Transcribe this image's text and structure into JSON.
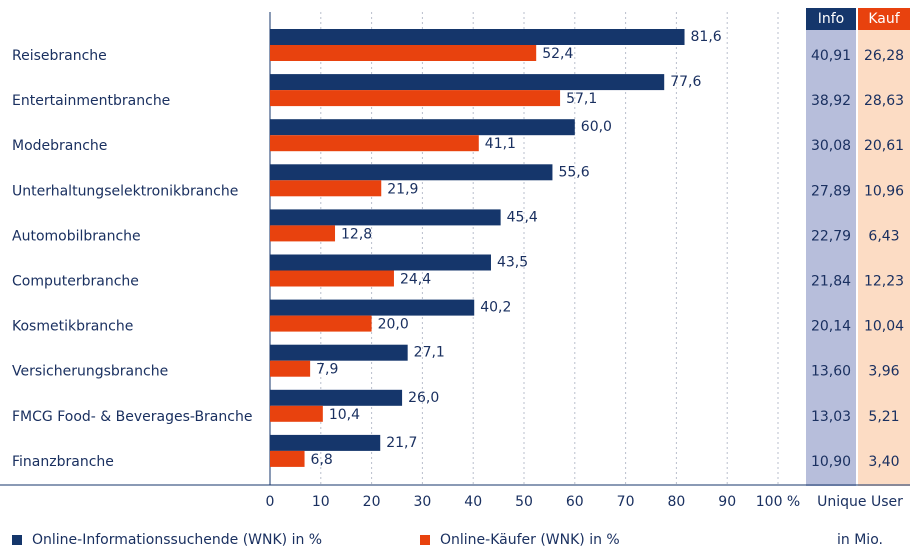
{
  "chart_data": {
    "type": "bar",
    "orientation": "horizontal",
    "categories": [
      "Reisebranche",
      "Entertainmentbranche",
      "Modebranche",
      "Unterhaltungselektronikbranche",
      "Automobilbranche",
      "Computerbranche",
      "Kosmetikbranche",
      "Versicherungsbranche",
      "FMCG Food- & Beverages-Branche",
      "Finanzbranche"
    ],
    "series": [
      {
        "name": "Online-Informationssuchende (WNK) in %",
        "color": "#15366b",
        "values": [
          81.6,
          77.6,
          60.0,
          55.6,
          45.4,
          43.5,
          40.2,
          27.1,
          26.0,
          21.7
        ],
        "value_labels": [
          "81,6",
          "77,6",
          "60,0",
          "55,6",
          "45,4",
          "43,5",
          "40,2",
          "27,1",
          "26,0",
          "21,7"
        ]
      },
      {
        "name": "Online-Käufer (WNK) in %",
        "color": "#e8420e",
        "values": [
          52.4,
          57.1,
          41.1,
          21.9,
          12.8,
          24.4,
          20.0,
          7.9,
          10.4,
          6.8
        ],
        "value_labels": [
          "52,4",
          "57,1",
          "41,1",
          "21,9",
          "12,8",
          "24,4",
          "20,0",
          "7,9",
          "10,4",
          "6,8"
        ]
      }
    ],
    "xlim": [
      0,
      100
    ],
    "xticks": [
      0,
      10,
      20,
      30,
      40,
      50,
      60,
      70,
      80,
      90,
      {
        "value": 100,
        "label": "100 %"
      }
    ],
    "grid": true,
    "table": {
      "headers": [
        "Info",
        "Kauf"
      ],
      "columns": [
        [
          "40,91",
          "38,92",
          "30,08",
          "27,89",
          "22,79",
          "21,84",
          "20,14",
          "13,60",
          "13,03",
          "10,90"
        ],
        [
          "26,28",
          "28,63",
          "20,61",
          "10,96",
          "6,43",
          "12,23",
          "10,04",
          "3,96",
          "5,21",
          "3,40"
        ]
      ],
      "footer": [
        "Unique User",
        "in Mio."
      ]
    }
  }
}
